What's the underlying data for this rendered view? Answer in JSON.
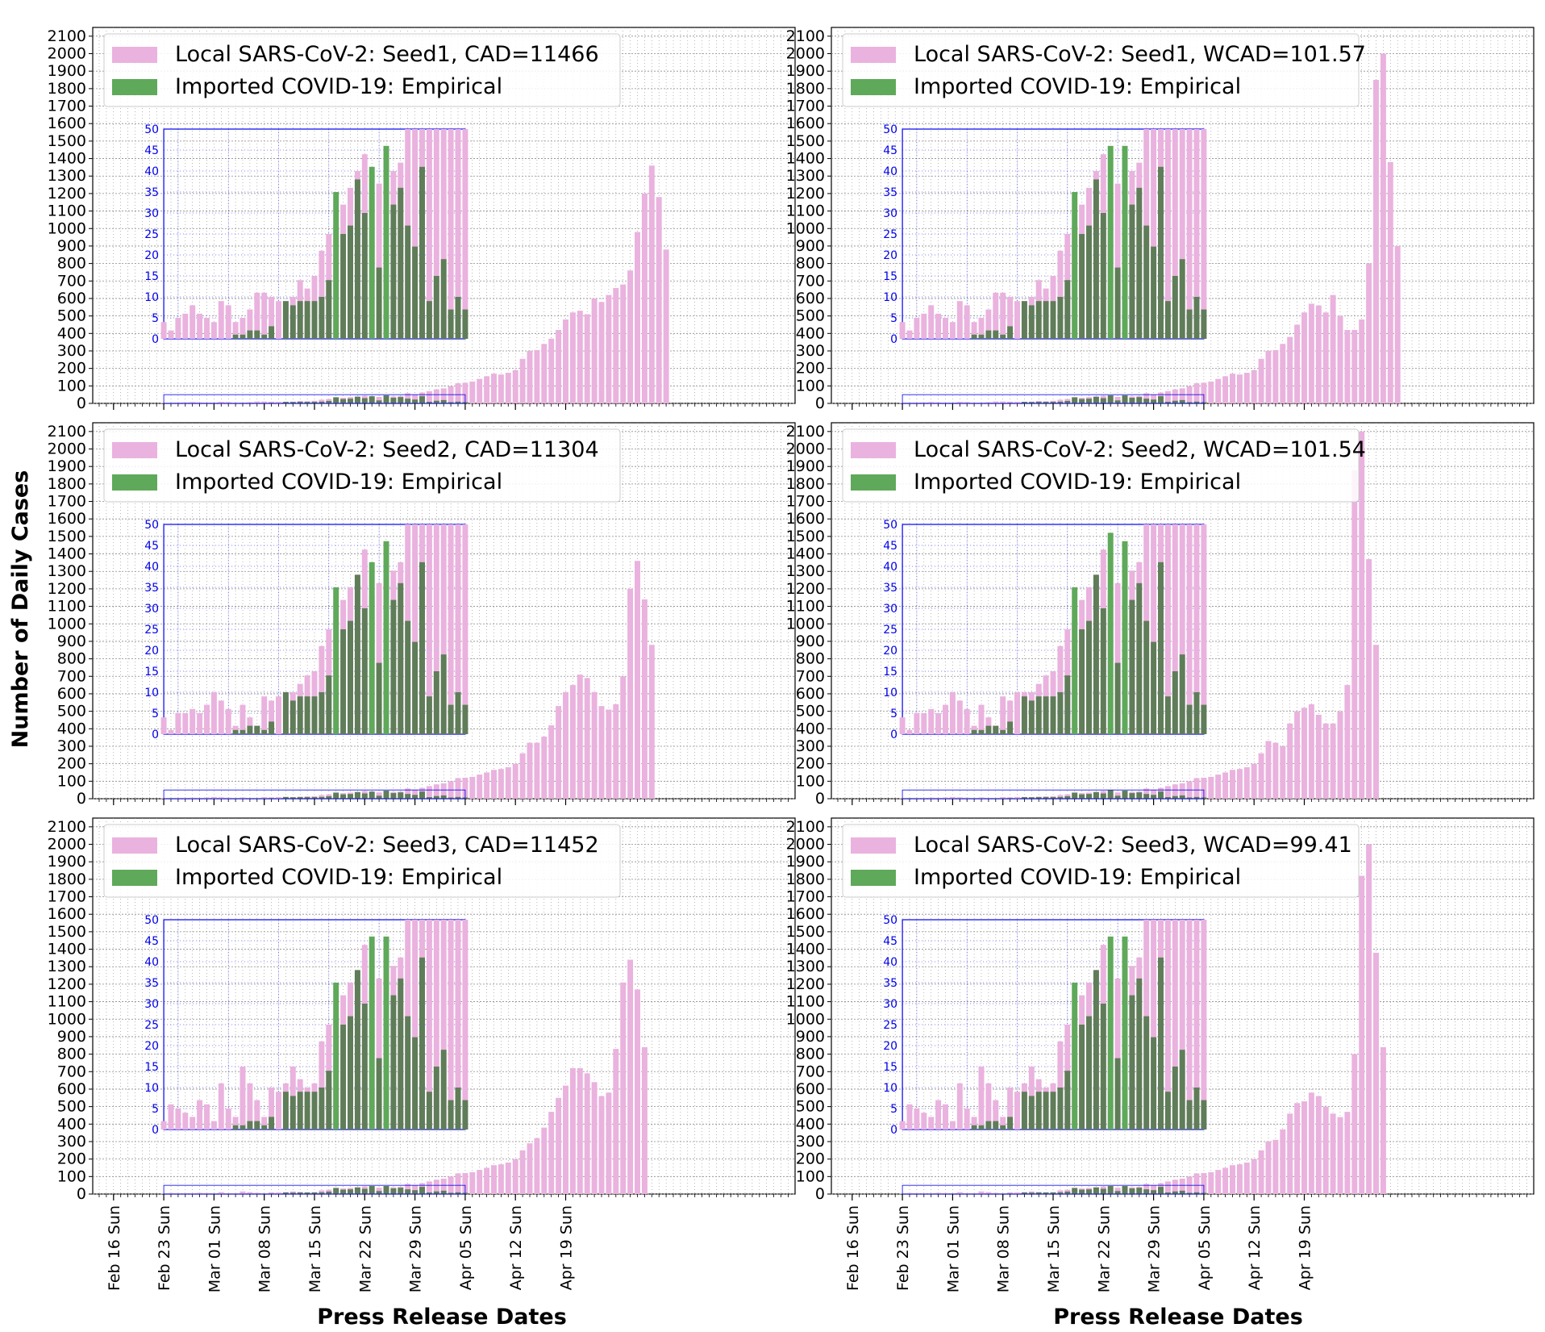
{
  "figure": {
    "ylabel": "Number of Daily Cases",
    "xlabel": "Press Release Dates"
  },
  "colors": {
    "local": "#eab2de",
    "local_edge": "#e3a0d2",
    "imported": "#5fa95a",
    "imported_dark": "#5f7d58",
    "inset": "#0000ee",
    "grid": "#8a8a8a"
  },
  "chart_data": [
    {
      "type": "bar",
      "panel": "seed1-cad",
      "legend_location": "upper left",
      "grid": true,
      "series": [
        {
          "name": "Local SARS-CoV-2: Seed1, CAD=11466",
          "key": "local"
        },
        {
          "name": "Imported COVID-19: Empirical",
          "key": "imported"
        }
      ],
      "x_start": "2020-02-14",
      "x_tick_labels": [
        "Feb 16 Sun",
        "Feb 23 Sun",
        "Mar 01 Sun",
        "Mar 08 Sun",
        "Mar 15 Sun",
        "Mar 22 Sun",
        "Mar 29 Sun",
        "Apr 05 Sun",
        "Apr 12 Sun",
        "Apr 19 Sun"
      ],
      "ylim": [
        0,
        2150
      ],
      "y_ticks": [
        0,
        100,
        200,
        300,
        400,
        500,
        600,
        700,
        800,
        900,
        1000,
        1100,
        1200,
        1300,
        1400,
        1500,
        1600,
        1700,
        1800,
        1900,
        2000,
        2100
      ],
      "local": [
        0,
        0,
        0,
        0,
        0,
        0,
        0,
        0,
        0,
        4,
        2,
        5,
        6,
        8,
        6,
        5,
        4,
        9,
        8,
        4,
        5,
        7,
        11,
        11,
        10,
        9,
        9,
        10,
        14,
        12,
        15,
        21,
        25,
        27,
        32,
        36,
        40,
        44,
        34,
        37,
        38,
        40,
        42,
        58,
        52,
        62,
        70,
        80,
        86,
        98,
        115,
        118,
        125,
        140,
        155,
        170,
        165,
        175,
        190,
        255,
        300,
        305,
        340,
        370,
        420,
        480,
        520,
        530,
        510,
        600,
        580,
        620,
        660,
        680,
        760,
        980,
        1200,
        1360,
        1180,
        880
      ],
      "imported": [
        0,
        0,
        0,
        0,
        0,
        0,
        0,
        0,
        0,
        0,
        0,
        0,
        0,
        0,
        0,
        0,
        0,
        0,
        0,
        1,
        1,
        2,
        2,
        1,
        3,
        0,
        9,
        8,
        9,
        9,
        9,
        10,
        14,
        35,
        25,
        27,
        38,
        30,
        41,
        17,
        46,
        32,
        36,
        27,
        22,
        41,
        9,
        15,
        19,
        7,
        10,
        7,
        0,
        0,
        0,
        0,
        0,
        0,
        0,
        0,
        0,
        0,
        0,
        0,
        0,
        0,
        0,
        0,
        0,
        0,
        0,
        0,
        0,
        0,
        0,
        0,
        0,
        0,
        0,
        0
      ],
      "inset": {
        "y_ticks": [
          0,
          5,
          10,
          15,
          20,
          25,
          30,
          35,
          40,
          45,
          50
        ],
        "ylim": [
          0,
          50
        ],
        "x_range": [
          "Feb 23",
          "Apr 05"
        ]
      }
    },
    {
      "type": "bar",
      "panel": "seed1-wcad",
      "legend_location": "upper left",
      "grid": true,
      "series": [
        {
          "name": "Local SARS-CoV-2: Seed1, WCAD=101.57",
          "key": "local"
        },
        {
          "name": "Imported COVID-19: Empirical",
          "key": "imported"
        }
      ],
      "x_start": "2020-02-14",
      "x_tick_labels": [
        "Feb 16 Sun",
        "Feb 23 Sun",
        "Mar 01 Sun",
        "Mar 08 Sun",
        "Mar 15 Sun",
        "Mar 22 Sun",
        "Mar 29 Sun",
        "Apr 05 Sun",
        "Apr 12 Sun",
        "Apr 19 Sun"
      ],
      "ylim": [
        0,
        2150
      ],
      "y_ticks": [
        0,
        100,
        200,
        300,
        400,
        500,
        600,
        700,
        800,
        900,
        1000,
        1100,
        1200,
        1300,
        1400,
        1500,
        1600,
        1700,
        1800,
        1900,
        2000,
        2100
      ],
      "local": [
        0,
        0,
        0,
        0,
        0,
        0,
        0,
        0,
        0,
        4,
        2,
        5,
        6,
        8,
        6,
        5,
        4,
        9,
        8,
        4,
        5,
        7,
        11,
        11,
        10,
        9,
        9,
        10,
        14,
        12,
        15,
        21,
        25,
        27,
        32,
        36,
        40,
        44,
        34,
        37,
        38,
        40,
        42,
        58,
        52,
        62,
        70,
        80,
        86,
        98,
        115,
        118,
        125,
        140,
        155,
        170,
        165,
        175,
        190,
        255,
        300,
        305,
        340,
        380,
        450,
        520,
        570,
        560,
        520,
        620,
        500,
        420,
        420,
        480,
        800,
        1850,
        2000,
        1380,
        900
      ],
      "imported": [
        0,
        0,
        0,
        0,
        0,
        0,
        0,
        0,
        0,
        0,
        0,
        0,
        0,
        0,
        0,
        0,
        0,
        0,
        0,
        1,
        1,
        2,
        2,
        1,
        3,
        0,
        9,
        8,
        9,
        9,
        9,
        10,
        14,
        35,
        25,
        27,
        38,
        30,
        46,
        17,
        46,
        32,
        36,
        27,
        22,
        41,
        9,
        15,
        19,
        7,
        10,
        7,
        0,
        0,
        0,
        0,
        0,
        0,
        0,
        0,
        0,
        0,
        0,
        0,
        0,
        0,
        0,
        0,
        0,
        0,
        0,
        0,
        0,
        0,
        0,
        0,
        0,
        0,
        0
      ],
      "inset": {
        "y_ticks": [
          0,
          5,
          10,
          15,
          20,
          25,
          30,
          35,
          40,
          45,
          50
        ],
        "ylim": [
          0,
          50
        ],
        "x_range": [
          "Feb 23",
          "Apr 05"
        ]
      }
    },
    {
      "type": "bar",
      "panel": "seed2-cad",
      "legend_location": "upper left",
      "grid": true,
      "series": [
        {
          "name": "Local SARS-CoV-2: Seed2, CAD=11304",
          "key": "local"
        },
        {
          "name": "Imported COVID-19: Empirical",
          "key": "imported"
        }
      ],
      "x_start": "2020-02-14",
      "x_tick_labels": [
        "Feb 16 Sun",
        "Feb 23 Sun",
        "Mar 01 Sun",
        "Mar 08 Sun",
        "Mar 15 Sun",
        "Mar 22 Sun",
        "Mar 29 Sun",
        "Apr 05 Sun",
        "Apr 12 Sun",
        "Apr 19 Sun"
      ],
      "ylim": [
        0,
        2150
      ],
      "y_ticks": [
        0,
        100,
        200,
        300,
        400,
        500,
        600,
        700,
        800,
        900,
        1000,
        1100,
        1200,
        1300,
        1400,
        1500,
        1600,
        1700,
        1800,
        1900,
        2000,
        2100
      ],
      "local": [
        0,
        0,
        0,
        0,
        0,
        0,
        0,
        0,
        0,
        4,
        1,
        5,
        5,
        6,
        5,
        7,
        10,
        8,
        6,
        2,
        7,
        4,
        2,
        9,
        8,
        9,
        10,
        10,
        12,
        14,
        15,
        21,
        25,
        27,
        32,
        35,
        38,
        44,
        33,
        36,
        37,
        39,
        41,
        58,
        52,
        62,
        72,
        82,
        88,
        100,
        118,
        120,
        125,
        138,
        150,
        165,
        170,
        180,
        200,
        260,
        320,
        320,
        355,
        420,
        530,
        610,
        650,
        710,
        690,
        610,
        530,
        510,
        540,
        700,
        1200,
        1360,
        1140,
        880
      ],
      "imported": [
        0,
        0,
        0,
        0,
        0,
        0,
        0,
        0,
        0,
        0,
        0,
        0,
        0,
        0,
        0,
        0,
        0,
        0,
        0,
        1,
        1,
        2,
        2,
        1,
        3,
        0,
        10,
        8,
        9,
        9,
        9,
        10,
        14,
        35,
        25,
        27,
        38,
        30,
        41,
        17,
        46,
        32,
        36,
        27,
        22,
        41,
        9,
        15,
        19,
        7,
        10,
        7,
        0,
        0,
        0,
        0,
        0,
        0,
        0,
        0,
        0,
        0,
        0,
        0,
        0,
        0,
        0,
        0,
        0,
        0,
        0,
        0,
        0,
        0,
        0,
        0,
        0,
        0
      ],
      "inset": {
        "y_ticks": [
          0,
          5,
          10,
          15,
          20,
          25,
          30,
          35,
          40,
          45,
          50
        ],
        "ylim": [
          0,
          50
        ],
        "x_range": [
          "Feb 23",
          "Apr 05"
        ]
      }
    },
    {
      "type": "bar",
      "panel": "seed2-wcad",
      "legend_location": "upper left",
      "grid": true,
      "series": [
        {
          "name": "Local SARS-CoV-2: Seed2, WCAD=101.54",
          "key": "local"
        },
        {
          "name": "Imported COVID-19: Empirical",
          "key": "imported"
        }
      ],
      "x_start": "2020-02-14",
      "x_tick_labels": [
        "Feb 16 Sun",
        "Feb 23 Sun",
        "Mar 01 Sun",
        "Mar 08 Sun",
        "Mar 15 Sun",
        "Mar 22 Sun",
        "Mar 29 Sun",
        "Apr 05 Sun",
        "Apr 12 Sun",
        "Apr 19 Sun"
      ],
      "ylim": [
        0,
        2150
      ],
      "y_ticks": [
        0,
        100,
        200,
        300,
        400,
        500,
        600,
        700,
        800,
        900,
        1000,
        1100,
        1200,
        1300,
        1400,
        1500,
        1600,
        1700,
        1800,
        1900,
        2000,
        2100
      ],
      "local": [
        0,
        0,
        0,
        0,
        0,
        0,
        0,
        0,
        0,
        4,
        1,
        5,
        5,
        6,
        5,
        7,
        10,
        8,
        6,
        2,
        7,
        4,
        2,
        9,
        8,
        10,
        10,
        10,
        12,
        14,
        15,
        21,
        25,
        27,
        32,
        35,
        38,
        44,
        33,
        36,
        37,
        39,
        41,
        58,
        52,
        62,
        72,
        82,
        88,
        100,
        118,
        120,
        125,
        138,
        150,
        165,
        170,
        180,
        200,
        260,
        330,
        320,
        300,
        430,
        500,
        520,
        540,
        480,
        430,
        430,
        500,
        650,
        1880,
        2100,
        1370,
        880
      ],
      "imported": [
        0,
        0,
        0,
        0,
        0,
        0,
        0,
        0,
        0,
        0,
        0,
        0,
        0,
        0,
        0,
        0,
        0,
        0,
        0,
        1,
        1,
        2,
        2,
        1,
        3,
        0,
        9,
        8,
        9,
        9,
        9,
        10,
        14,
        35,
        25,
        27,
        38,
        30,
        48,
        17,
        46,
        32,
        36,
        27,
        22,
        41,
        9,
        15,
        19,
        7,
        10,
        7,
        0,
        0,
        0,
        0,
        0,
        0,
        0,
        0,
        0,
        0,
        0,
        0,
        0,
        0,
        0,
        0,
        0,
        0,
        0,
        0,
        0,
        0,
        0,
        0,
        0,
        0
      ],
      "inset": {
        "y_ticks": [
          0,
          5,
          10,
          15,
          20,
          25,
          30,
          35,
          40,
          45,
          50
        ],
        "ylim": [
          0,
          50
        ],
        "x_range": [
          "Feb 23",
          "Apr 05"
        ]
      }
    },
    {
      "type": "bar",
      "panel": "seed3-cad",
      "legend_location": "upper left",
      "grid": true,
      "series": [
        {
          "name": "Local SARS-CoV-2: Seed3, CAD=11452",
          "key": "local"
        },
        {
          "name": "Imported COVID-19: Empirical",
          "key": "imported"
        }
      ],
      "x_start": "2020-02-14",
      "x_tick_labels": [
        "Feb 16 Sun",
        "Feb 23 Sun",
        "Mar 01 Sun",
        "Mar 08 Sun",
        "Mar 15 Sun",
        "Mar 22 Sun",
        "Mar 29 Sun",
        "Apr 05 Sun",
        "Apr 12 Sun",
        "Apr 19 Sun"
      ],
      "ylim": [
        0,
        2150
      ],
      "y_ticks": [
        0,
        100,
        200,
        300,
        400,
        500,
        600,
        700,
        800,
        900,
        1000,
        1100,
        1200,
        1300,
        1400,
        1500,
        1600,
        1700,
        1800,
        1900,
        2000,
        2100
      ],
      "local": [
        0,
        0,
        0,
        0,
        0,
        0,
        0,
        0,
        0,
        2,
        6,
        5,
        4,
        3,
        7,
        6,
        2,
        11,
        5,
        3,
        15,
        11,
        7,
        3,
        10,
        9,
        11,
        15,
        12,
        10,
        11,
        21,
        25,
        27,
        32,
        35,
        38,
        44,
        33,
        36,
        37,
        39,
        41,
        58,
        52,
        62,
        72,
        82,
        88,
        100,
        118,
        120,
        125,
        138,
        150,
        165,
        170,
        180,
        200,
        250,
        290,
        320,
        380,
        470,
        550,
        620,
        720,
        720,
        690,
        640,
        560,
        580,
        830,
        1210,
        1340,
        1170,
        840
      ],
      "imported": [
        0,
        0,
        0,
        0,
        0,
        0,
        0,
        0,
        0,
        0,
        0,
        0,
        0,
        0,
        0,
        0,
        0,
        0,
        0,
        1,
        1,
        2,
        2,
        1,
        3,
        0,
        9,
        8,
        9,
        9,
        9,
        10,
        14,
        35,
        25,
        27,
        38,
        30,
        46,
        17,
        46,
        32,
        36,
        27,
        22,
        41,
        9,
        15,
        19,
        7,
        10,
        7,
        0,
        0,
        0,
        0,
        0,
        0,
        0,
        0,
        0,
        0,
        0,
        0,
        0,
        0,
        0,
        0,
        0,
        0,
        0,
        0,
        0,
        0,
        0,
        0,
        0
      ],
      "inset": {
        "y_ticks": [
          0,
          5,
          10,
          15,
          20,
          25,
          30,
          35,
          40,
          45,
          50
        ],
        "ylim": [
          0,
          50
        ],
        "x_range": [
          "Feb 23",
          "Apr 05"
        ]
      }
    },
    {
      "type": "bar",
      "panel": "seed3-wcad",
      "legend_location": "upper left",
      "grid": true,
      "series": [
        {
          "name": "Local SARS-CoV-2: Seed3, WCAD=99.41",
          "key": "local"
        },
        {
          "name": "Imported COVID-19: Empirical",
          "key": "imported"
        }
      ],
      "x_start": "2020-02-14",
      "x_tick_labels": [
        "Feb 16 Sun",
        "Feb 23 Sun",
        "Mar 01 Sun",
        "Mar 08 Sun",
        "Mar 15 Sun",
        "Mar 22 Sun",
        "Mar 29 Sun",
        "Apr 05 Sun",
        "Apr 12 Sun",
        "Apr 19 Sun"
      ],
      "ylim": [
        0,
        2150
      ],
      "y_ticks": [
        0,
        100,
        200,
        300,
        400,
        500,
        600,
        700,
        800,
        900,
        1000,
        1100,
        1200,
        1300,
        1400,
        1500,
        1600,
        1700,
        1800,
        1900,
        2000,
        2100
      ],
      "local": [
        0,
        0,
        0,
        0,
        0,
        0,
        0,
        0,
        0,
        2,
        6,
        5,
        4,
        3,
        7,
        6,
        2,
        11,
        5,
        3,
        15,
        11,
        7,
        3,
        10,
        9,
        11,
        15,
        12,
        10,
        11,
        21,
        25,
        27,
        32,
        35,
        38,
        44,
        33,
        36,
        37,
        39,
        41,
        58,
        52,
        62,
        72,
        82,
        88,
        100,
        118,
        120,
        125,
        138,
        150,
        165,
        170,
        180,
        200,
        250,
        300,
        310,
        370,
        460,
        520,
        530,
        580,
        560,
        500,
        460,
        440,
        470,
        800,
        1820,
        2000,
        1380,
        840
      ],
      "imported": [
        0,
        0,
        0,
        0,
        0,
        0,
        0,
        0,
        0,
        0,
        0,
        0,
        0,
        0,
        0,
        0,
        0,
        0,
        0,
        1,
        1,
        2,
        2,
        1,
        3,
        0,
        9,
        8,
        9,
        9,
        9,
        10,
        14,
        35,
        25,
        27,
        38,
        30,
        46,
        17,
        46,
        32,
        36,
        27,
        22,
        41,
        9,
        15,
        19,
        7,
        10,
        7,
        0,
        0,
        0,
        0,
        0,
        0,
        0,
        0,
        0,
        0,
        0,
        0,
        0,
        0,
        0,
        0,
        0,
        0,
        0,
        0,
        0,
        0,
        0,
        0,
        0
      ],
      "inset": {
        "y_ticks": [
          0,
          5,
          10,
          15,
          20,
          25,
          30,
          35,
          40,
          45,
          50
        ],
        "ylim": [
          0,
          50
        ],
        "x_range": [
          "Feb 23",
          "Apr 05"
        ]
      }
    }
  ]
}
